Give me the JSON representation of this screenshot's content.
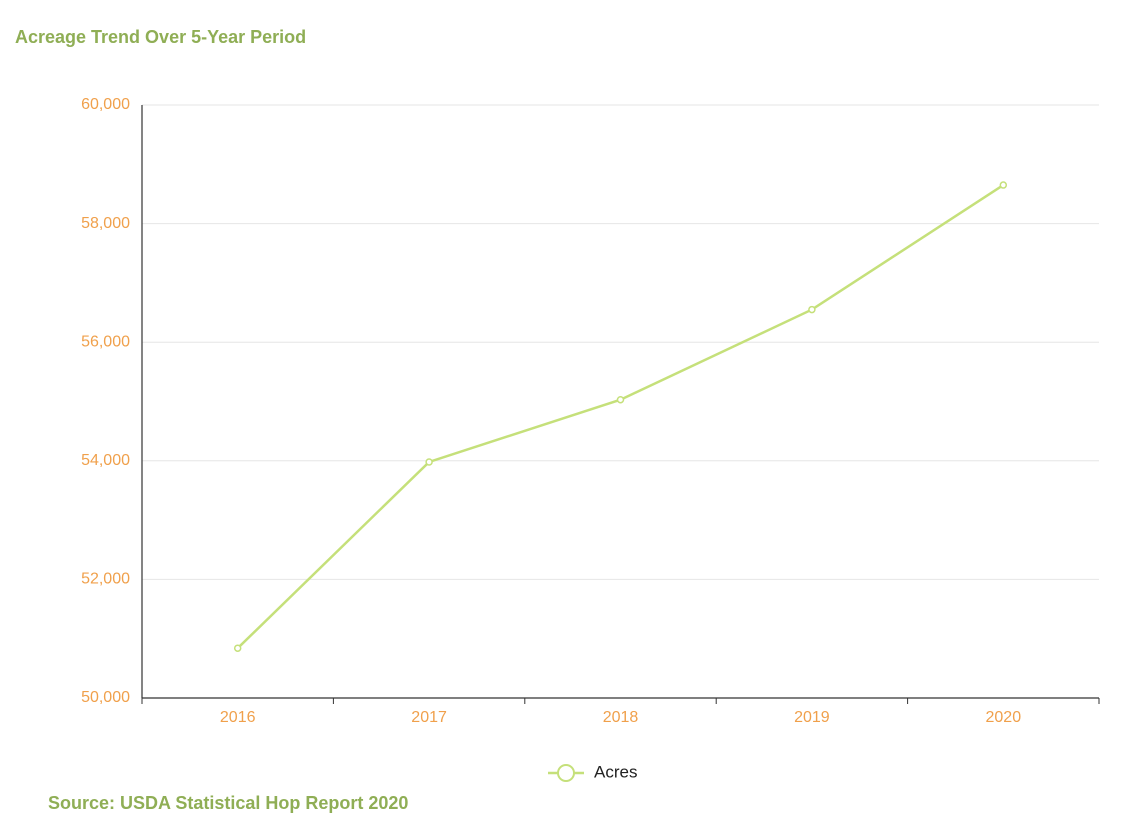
{
  "chart_data": {
    "type": "line",
    "title": "Acreage Trend Over 5-Year Period",
    "source": "Source: USDA Statistical Hop Report 2020",
    "categories": [
      "2016",
      "2017",
      "2018",
      "2019",
      "2020"
    ],
    "series": [
      {
        "name": "Acres",
        "color": "#c5e07a",
        "values": [
          50840,
          53980,
          55030,
          56550,
          58650
        ]
      }
    ],
    "ylim": [
      50000,
      60000
    ],
    "yticks": [
      {
        "value": 50000,
        "label": "50,000"
      },
      {
        "value": 52000,
        "label": "52,000"
      },
      {
        "value": 54000,
        "label": "54,000"
      },
      {
        "value": 56000,
        "label": "56,000"
      },
      {
        "value": 58000,
        "label": "58,000"
      },
      {
        "value": 60000,
        "label": "60,000"
      }
    ],
    "grid": true
  }
}
